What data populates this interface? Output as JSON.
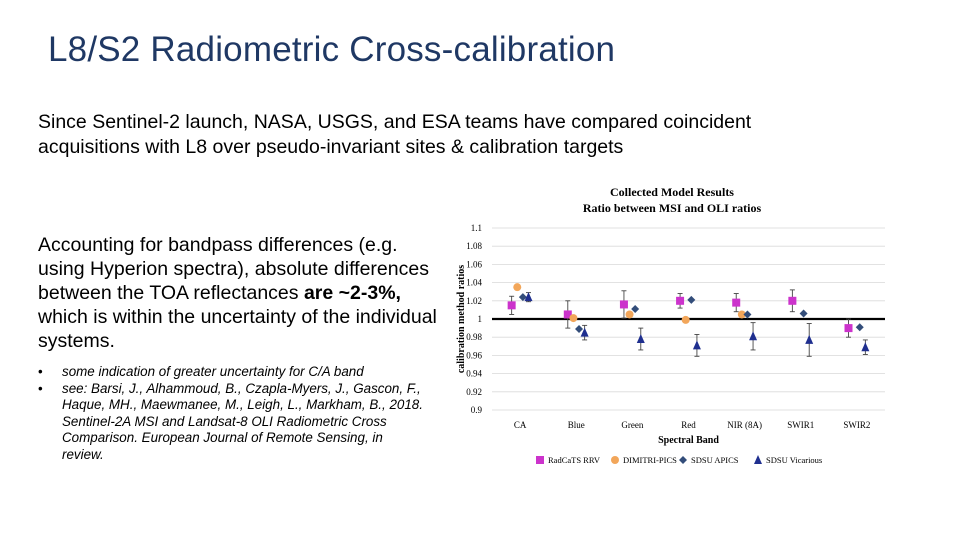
{
  "slide": {
    "title": "L8/S2 Radiometric Cross-calibration",
    "intro": "Since Sentinel-2 launch, NASA, USGS, and ESA teams have compared coincident acquisitions with L8 over pseudo-invariant sites & calibration targets",
    "accounting_pre": "Accounting for bandpass differences (e.g. using Hyperion spectra), absolute differences between the TOA reflectances ",
    "accounting_bold": "are ~2-3%,",
    "accounting_post": " which is within the uncertainty of the individual systems.",
    "bullets": [
      "some indication of greater uncertainty for C/A band",
      "see: Barsi, J., Alhammoud, B., Czapla-Myers, J., Gascon, F., Haque, MH., Maewmanee, M., Leigh, L., Markham, B., 2018. Sentinel-2A MSI and Landsat-8 OLI Radiometric Cross Comparison. European Journal of Remote Sensing, in review."
    ]
  },
  "chart_data": {
    "type": "scatter",
    "title": "Collected Model Results",
    "subtitle": "Ratio between MSI and OLI ratios",
    "xlabel": "Spectral Band",
    "ylabel": "calibration method ratios",
    "ylim": [
      0.9,
      1.1
    ],
    "yticks": [
      "0.9",
      "0.92",
      "0.94",
      "0.96",
      "0.98",
      "1",
      "1.02",
      "1.04",
      "1.06",
      "1.08",
      "1.1"
    ],
    "categories": [
      "CA",
      "Blue",
      "Green",
      "Red",
      "NIR (8A)",
      "SWIR1",
      "SWIR2"
    ],
    "reference_line": 1.0,
    "grid": true,
    "legend_position": "bottom",
    "series": [
      {
        "name": "RadCaTS RRV",
        "marker": "square",
        "color": "#cc33cc",
        "values": [
          1.015,
          1.005,
          1.016,
          1.02,
          1.018,
          1.02,
          0.99
        ],
        "err": [
          0.01,
          0.015,
          0.015,
          0.008,
          0.01,
          0.012,
          0.01
        ]
      },
      {
        "name": "DIMITRI-PICS",
        "marker": "circle",
        "color": "#f2a65a",
        "values": [
          1.035,
          1.001,
          1.005,
          0.999,
          1.005,
          null,
          null
        ],
        "err": [
          null,
          null,
          null,
          null,
          null,
          null,
          null
        ]
      },
      {
        "name": "SDSU APICS",
        "marker": "diamond",
        "color": "#334d7a",
        "values": [
          1.024,
          0.989,
          1.011,
          1.021,
          1.005,
          1.006,
          0.991
        ],
        "err": [
          null,
          null,
          null,
          null,
          null,
          null,
          null
        ]
      },
      {
        "name": "SDSU Vicarious",
        "marker": "triangle",
        "color": "#1f2f8f",
        "values": [
          1.024,
          0.985,
          0.978,
          0.971,
          0.981,
          0.977,
          0.969
        ],
        "err": [
          0.005,
          0.008,
          0.012,
          0.012,
          0.015,
          0.018,
          0.008
        ]
      }
    ]
  }
}
